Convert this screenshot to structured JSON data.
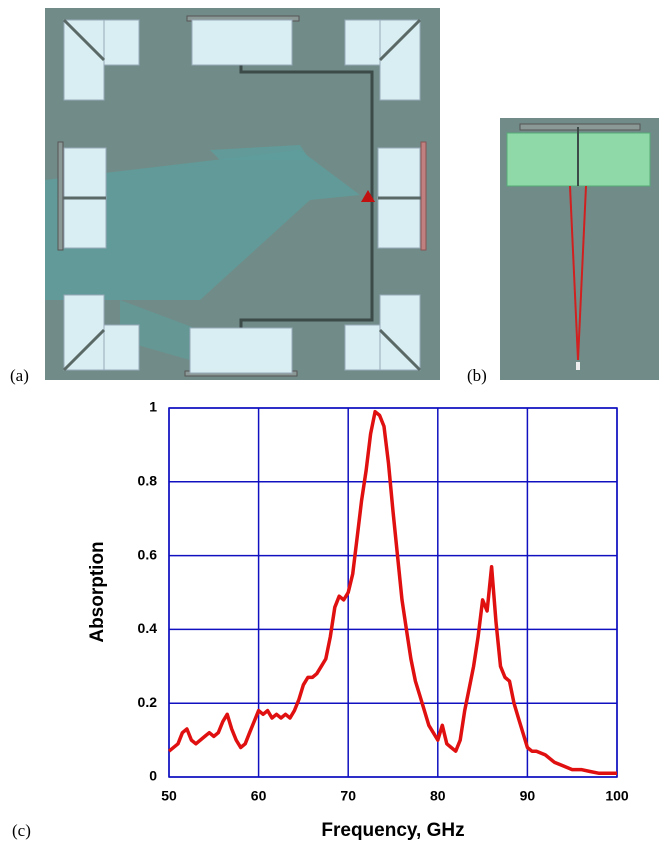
{
  "panels": {
    "a": "(a)",
    "b": "(b)",
    "c": "(c)"
  },
  "chart_data": {
    "type": "line",
    "xlabel": "Frequency, GHz",
    "ylabel": "Absorption",
    "color": "#e01010",
    "grid": true,
    "grid_color": "#1010c0",
    "xlim": [
      50,
      100
    ],
    "xticks": [
      50,
      60,
      70,
      80,
      90,
      100
    ],
    "ylim": [
      0,
      1
    ],
    "yticks": [
      0,
      0.2,
      0.4,
      0.6,
      0.8,
      1
    ],
    "x": [
      50,
      51,
      51.5,
      52,
      52.5,
      53,
      54,
      54.5,
      55,
      55.5,
      56,
      56.5,
      57,
      57.5,
      58,
      58.5,
      59,
      59.5,
      60,
      60.5,
      61,
      61.5,
      62,
      62.5,
      63,
      63.5,
      64,
      64.5,
      65,
      65.5,
      66,
      66.5,
      67,
      67.5,
      68,
      68.5,
      69,
      69.5,
      70,
      70.5,
      71,
      71.5,
      72,
      72.5,
      73,
      73.5,
      74,
      74.5,
      75,
      75.5,
      76,
      76.5,
      77,
      77.5,
      78,
      78.5,
      79,
      79.5,
      80,
      80.5,
      81,
      81.5,
      82,
      82.5,
      83,
      83.5,
      84,
      84.5,
      85,
      85.5,
      86,
      86.5,
      87,
      87.5,
      88,
      88.5,
      89,
      89.5,
      90,
      90.5,
      91,
      92,
      93,
      94,
      95,
      96,
      97,
      98,
      99,
      100
    ],
    "values": [
      0.07,
      0.09,
      0.12,
      0.13,
      0.1,
      0.09,
      0.11,
      0.12,
      0.11,
      0.12,
      0.15,
      0.17,
      0.13,
      0.1,
      0.08,
      0.09,
      0.12,
      0.15,
      0.18,
      0.17,
      0.18,
      0.16,
      0.17,
      0.16,
      0.17,
      0.16,
      0.18,
      0.21,
      0.25,
      0.27,
      0.27,
      0.28,
      0.3,
      0.32,
      0.38,
      0.46,
      0.49,
      0.48,
      0.5,
      0.55,
      0.65,
      0.75,
      0.83,
      0.93,
      0.99,
      0.98,
      0.95,
      0.85,
      0.72,
      0.6,
      0.48,
      0.4,
      0.32,
      0.26,
      0.22,
      0.18,
      0.14,
      0.12,
      0.1,
      0.14,
      0.09,
      0.08,
      0.07,
      0.1,
      0.18,
      0.24,
      0.3,
      0.38,
      0.48,
      0.45,
      0.57,
      0.42,
      0.3,
      0.27,
      0.26,
      0.2,
      0.16,
      0.12,
      0.08,
      0.07,
      0.07,
      0.06,
      0.04,
      0.03,
      0.02,
      0.02,
      0.015,
      0.01,
      0.01,
      0.01
    ]
  }
}
